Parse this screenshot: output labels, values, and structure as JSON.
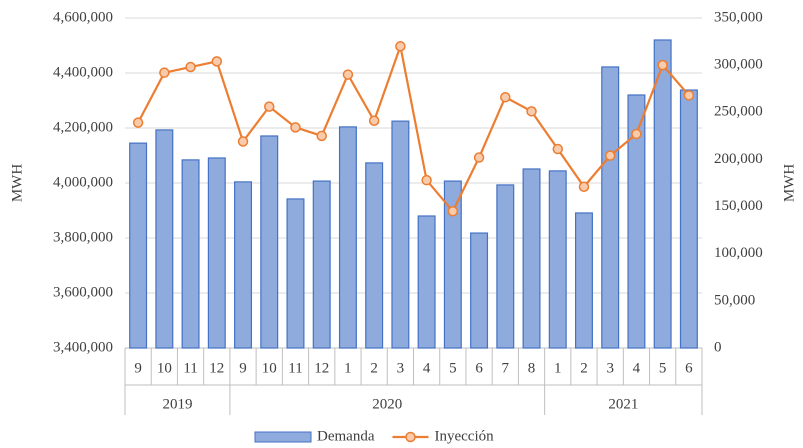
{
  "chart_data": {
    "type": "bar-line",
    "category_groups": [
      {
        "label": "2019",
        "categories": [
          "9",
          "10",
          "11",
          "12"
        ]
      },
      {
        "label": "2020",
        "categories": [
          "9",
          "10",
          "11",
          "12",
          "1",
          "2",
          "3",
          "4",
          "5",
          "6",
          "7",
          "8"
        ]
      },
      {
        "label": "2021",
        "categories": [
          "1",
          "2",
          "3",
          "4",
          "5",
          "6"
        ]
      }
    ],
    "series": [
      {
        "name": "Demanda",
        "type": "bar",
        "color": "#8faadc",
        "edge_color": "#4472c4",
        "values": [
          4145000,
          4193000,
          4084000,
          4091000,
          4004000,
          4171000,
          3942000,
          4007000,
          4204000,
          4073000,
          4225000,
          3880000,
          4007000,
          3818000,
          3993000,
          4051000,
          4044000,
          3891000,
          4422000,
          4320000,
          4520000,
          4338000
        ]
      },
      {
        "name": "Inyección",
        "type": "line",
        "axis": "y2",
        "color": "#ed7d31",
        "marker_color": "#f8cbad",
        "values": [
          239000,
          292000,
          298000,
          304000,
          219000,
          256000,
          234000,
          225000,
          290000,
          241000,
          320000,
          178000,
          145000,
          202000,
          266000,
          251000,
          211000,
          171000,
          204000,
          227000,
          300000,
          268000
        ]
      }
    ],
    "ylabel": "MWH",
    "y2label": "MWH",
    "ylim": [
      3400000,
      4600000
    ],
    "yticks": [
      {
        "value": 3400000,
        "label": "3,400,000"
      },
      {
        "value": 3600000,
        "label": "3,600,000"
      },
      {
        "value": 3800000,
        "label": "3,800,000"
      },
      {
        "value": 4000000,
        "label": "4,000,000"
      },
      {
        "value": 4200000,
        "label": "4,200,000"
      },
      {
        "value": 4400000,
        "label": "4,400,000"
      },
      {
        "value": 4600000,
        "label": "4,600,000"
      }
    ],
    "y2lim": [
      0,
      350000
    ],
    "y2ticks": [
      0,
      {
        "value": 50000,
        "label": "50,000"
      },
      {
        "value": 100000,
        "label": "100,000"
      },
      {
        "value": 150000,
        "label": "150,000"
      },
      {
        "value": 200000,
        "label": "200,000"
      },
      {
        "value": 250000,
        "label": "250,000"
      },
      {
        "value": 300000,
        "label": "300,000"
      },
      {
        "value": 350000,
        "label": "350,000"
      }
    ],
    "grid": true,
    "legend": "bottom"
  }
}
